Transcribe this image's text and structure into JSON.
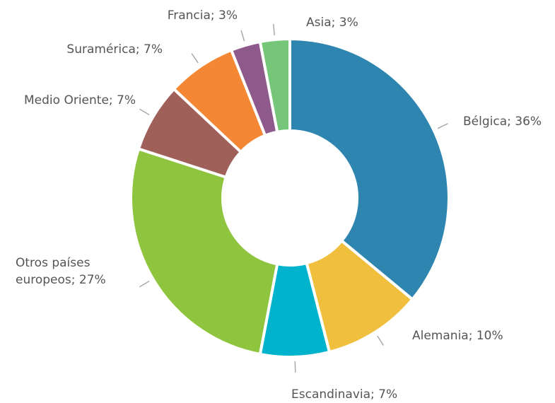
{
  "chart_data": {
    "type": "donut",
    "value_labels": [
      "Bélgica; 36%",
      "Alemania; 10%",
      "Escandinavia; 7%",
      "Otros países europeos; 27%",
      "Medio Oriente; 7%",
      "Suramérica; 7%",
      "Francia; 3%",
      "Asia; 3%"
    ],
    "values": [
      36,
      10,
      7,
      27,
      7,
      7,
      3,
      3
    ],
    "colors": [
      "#2e86b0",
      "#f0bf3e",
      "#00b3cc",
      "#8fc43e",
      "#a0605a",
      "#f48733",
      "#8e5a8c",
      "#76c67a"
    ]
  }
}
